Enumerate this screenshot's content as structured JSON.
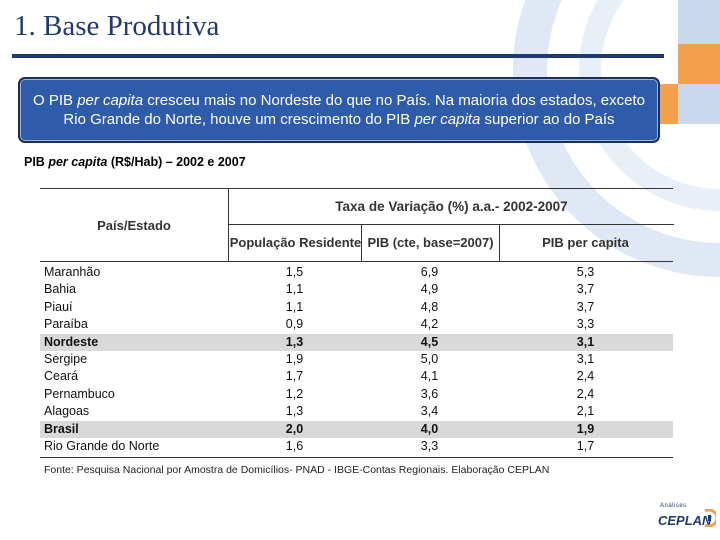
{
  "title": "1. Base Produtiva",
  "callout": {
    "part1": "O  PIB ",
    "em1": "per capita",
    "part2": " cresceu mais no Nordeste do que no  País. Na maioria dos estados, exceto Rio Grande do Norte, houve um crescimento do PIB ",
    "em2": "per capita",
    "part3": " superior ao do País"
  },
  "caption": {
    "part1": "PIB ",
    "em": "per capita",
    "part2": " (R$/Hab) – 2002 e 2007"
  },
  "table": {
    "col_country": "País/Estado",
    "group_header": "Taxa de Variação (%) a.a.- 2002-2007",
    "col_pop": "População Residente",
    "col_pib": "PIB (cte, base=2007)",
    "col_pibpc": "PIB per capita",
    "rows": [
      {
        "name": "Maranhão",
        "pop": "1,5",
        "pib": "6,9",
        "pibpc": "5,3",
        "highlight": false
      },
      {
        "name": "Bahia",
        "pop": "1,1",
        "pib": "4,9",
        "pibpc": "3,7",
        "highlight": false
      },
      {
        "name": "Piauí",
        "pop": "1,1",
        "pib": "4,8",
        "pibpc": "3,7",
        "highlight": false
      },
      {
        "name": "Paraíba",
        "pop": "0,9",
        "pib": "4,2",
        "pibpc": "3,3",
        "highlight": false
      },
      {
        "name": "Nordeste",
        "pop": "1,3",
        "pib": "4,5",
        "pibpc": "3,1",
        "highlight": true
      },
      {
        "name": "Sergipe",
        "pop": "1,9",
        "pib": "5,0",
        "pibpc": "3,1",
        "highlight": false
      },
      {
        "name": "Ceará",
        "pop": "1,7",
        "pib": "4,1",
        "pibpc": "2,4",
        "highlight": false
      },
      {
        "name": "Pernambuco",
        "pop": "1,2",
        "pib": "3,6",
        "pibpc": "2,4",
        "highlight": false
      },
      {
        "name": "Alagoas",
        "pop": "1,3",
        "pib": "3,4",
        "pibpc": "2,1",
        "highlight": false
      },
      {
        "name": "Brasil",
        "pop": "2,0",
        "pib": "4,0",
        "pibpc": "1,9",
        "highlight": true
      },
      {
        "name": "Rio Grande do Norte",
        "pop": "1,6",
        "pib": "3,3",
        "pibpc": "1,7",
        "highlight": false
      }
    ],
    "source": "Fonte: Pesquisa Nacional por Amostra de Domicílios- PNAD - IBGE-Contas Regionais. Elaboração CEPLAN"
  },
  "logo": {
    "tagline": "Análises",
    "name": "CEPLAN"
  },
  "colors": {
    "title": "#1f3a6e",
    "callout_bg": "#2f5bab",
    "highlight_row": "#d9d9d9",
    "deco_orange": "#f5a04a",
    "deco_blue": "#c9d8ec"
  }
}
